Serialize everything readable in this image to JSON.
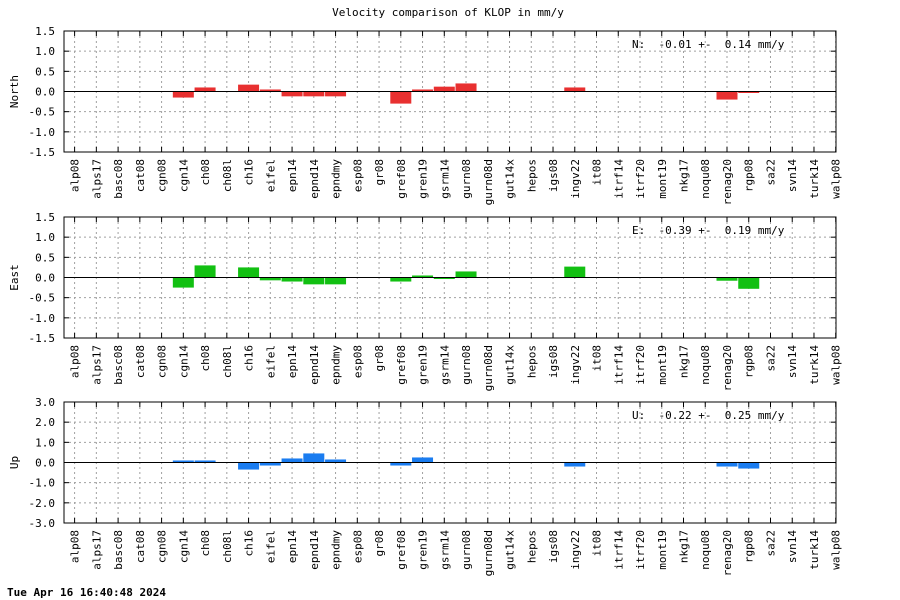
{
  "title": "Velocity comparison of KLOP in mm/y",
  "timestamp": "Tue Apr 16 16:40:48 2024",
  "chart_data": [
    {
      "type": "bar",
      "ylabel": "North",
      "color": "#e83030",
      "ylim": [
        -1.5,
        1.5
      ],
      "yticks": [
        "1.5",
        "1.0",
        "0.5",
        "0.0",
        "-0.5",
        "-1.0",
        "-1.5"
      ],
      "grid": true,
      "annotation": "N:  -0.01 +-  0.14 mm/y",
      "categories": [
        "alp08",
        "alps17",
        "basc08",
        "cat08",
        "cgn08",
        "cgn14",
        "ch08",
        "ch08l",
        "ch16",
        "eifel",
        "epn14",
        "epnd14",
        "epndmy",
        "esp08",
        "gr08",
        "gref08",
        "gren19",
        "gsrm14",
        "gurn08",
        "gurn08d",
        "gut14x",
        "hepos",
        "igs08",
        "ingv22",
        "it08",
        "itrf14",
        "itrf20",
        "mont19",
        "nkg17",
        "noqu08",
        "renag20",
        "rgp08",
        "sa22",
        "svn14",
        "turk14",
        "walp08"
      ],
      "values": [
        null,
        null,
        null,
        null,
        null,
        -0.15,
        0.1,
        null,
        0.17,
        0.05,
        -0.12,
        -0.12,
        -0.12,
        null,
        null,
        -0.3,
        0.05,
        0.12,
        0.2,
        null,
        null,
        null,
        null,
        0.1,
        null,
        null,
        null,
        null,
        null,
        null,
        -0.2,
        -0.02,
        null,
        null,
        null,
        null
      ]
    },
    {
      "type": "bar",
      "ylabel": "East",
      "color": "#12c012",
      "ylim": [
        -1.5,
        1.5
      ],
      "yticks": [
        "1.5",
        "1.0",
        "0.5",
        "0.0",
        "-0.5",
        "-1.0",
        "-1.5"
      ],
      "grid": true,
      "annotation": "E:  -0.39 +-  0.19 mm/y",
      "categories": [
        "alp08",
        "alps17",
        "basc08",
        "cat08",
        "cgn08",
        "cgn14",
        "ch08",
        "ch08l",
        "ch16",
        "eifel",
        "epn14",
        "epnd14",
        "epndmy",
        "esp08",
        "gr08",
        "gref08",
        "gren19",
        "gsrm14",
        "gurn08",
        "gurn08d",
        "gut14x",
        "hepos",
        "igs08",
        "ingv22",
        "it08",
        "itrf14",
        "itrf20",
        "mont19",
        "nkg17",
        "noqu08",
        "renag20",
        "rgp08",
        "sa22",
        "svn14",
        "turk14",
        "walp08"
      ],
      "values": [
        null,
        null,
        null,
        null,
        null,
        -0.25,
        0.3,
        null,
        0.25,
        -0.07,
        -0.1,
        -0.17,
        -0.17,
        null,
        null,
        -0.1,
        0.05,
        -0.03,
        0.15,
        null,
        null,
        null,
        null,
        0.27,
        null,
        null,
        null,
        null,
        null,
        null,
        -0.08,
        -0.28,
        null,
        null,
        null,
        null
      ]
    },
    {
      "type": "bar",
      "ylabel": "Up",
      "color": "#1a7cf0",
      "ylim": [
        -3.0,
        3.0
      ],
      "yticks": [
        "3.0",
        "2.0",
        "1.0",
        "0.0",
        "-1.0",
        "-2.0",
        "-3.0"
      ],
      "grid": true,
      "annotation": "U:  -0.22 +-  0.25 mm/y",
      "categories": [
        "alp08",
        "alps17",
        "basc08",
        "cat08",
        "cgn08",
        "cgn14",
        "ch08",
        "ch08l",
        "ch16",
        "eifel",
        "epn14",
        "epnd14",
        "epndmy",
        "esp08",
        "gr08",
        "gref08",
        "gren19",
        "gsrm14",
        "gurn08",
        "gurn08d",
        "gut14x",
        "hepos",
        "igs08",
        "ingv22",
        "it08",
        "itrf14",
        "itrf20",
        "mont19",
        "nkg17",
        "noqu08",
        "renag20",
        "rgp08",
        "sa22",
        "svn14",
        "turk14",
        "walp08"
      ],
      "values": [
        null,
        null,
        null,
        null,
        null,
        0.1,
        0.1,
        null,
        -0.35,
        -0.15,
        0.2,
        0.45,
        0.15,
        null,
        null,
        -0.15,
        0.25,
        null,
        null,
        null,
        null,
        null,
        null,
        -0.2,
        null,
        null,
        null,
        null,
        null,
        null,
        -0.2,
        -0.3,
        null,
        null,
        null,
        null
      ]
    }
  ]
}
